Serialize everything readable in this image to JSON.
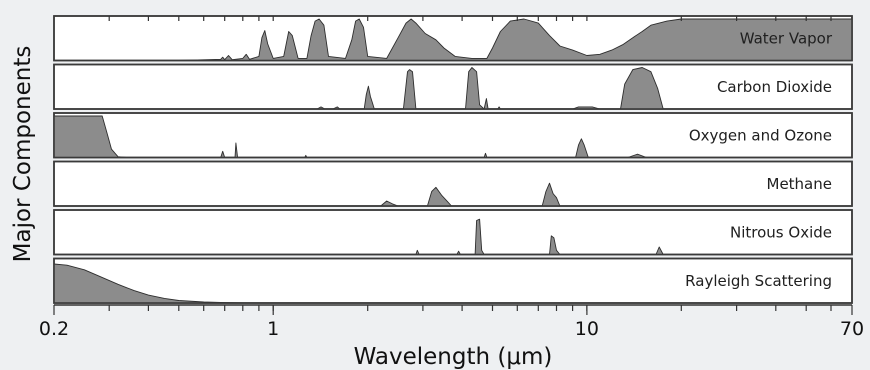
{
  "chart_data": {
    "type": "area",
    "xlabel": "Wavelength (μm)",
    "ylabel": "Major Components",
    "xscale": "log",
    "xlim": [
      0.2,
      70
    ],
    "ylim": [
      0,
      1
    ],
    "xticks": [
      {
        "value": 0.2,
        "label": "0.2"
      },
      {
        "value": 1,
        "label": "1"
      },
      {
        "value": 10,
        "label": "10"
      },
      {
        "value": 70,
        "label": "70"
      }
    ],
    "minor_ticks": [
      0.3,
      0.4,
      0.5,
      0.6,
      0.7,
      0.8,
      0.9,
      2,
      3,
      4,
      5,
      6,
      7,
      8,
      9,
      20,
      30,
      40,
      50,
      60
    ],
    "series": [
      {
        "name": "Water Vapor",
        "points": [
          [
            0.2,
            0
          ],
          [
            0.5,
            0
          ],
          [
            0.68,
            0.03
          ],
          [
            0.69,
            0.08
          ],
          [
            0.7,
            0.02
          ],
          [
            0.72,
            0.12
          ],
          [
            0.74,
            0.02
          ],
          [
            0.8,
            0.05
          ],
          [
            0.82,
            0.15
          ],
          [
            0.84,
            0.03
          ],
          [
            0.9,
            0.1
          ],
          [
            0.92,
            0.55
          ],
          [
            0.94,
            0.72
          ],
          [
            0.96,
            0.4
          ],
          [
            1.0,
            0.05
          ],
          [
            1.08,
            0.1
          ],
          [
            1.12,
            0.7
          ],
          [
            1.15,
            0.6
          ],
          [
            1.2,
            0.05
          ],
          [
            1.28,
            0.05
          ],
          [
            1.32,
            0.6
          ],
          [
            1.36,
            0.95
          ],
          [
            1.4,
            1.0
          ],
          [
            1.45,
            0.85
          ],
          [
            1.5,
            0.1
          ],
          [
            1.7,
            0.05
          ],
          [
            1.78,
            0.5
          ],
          [
            1.83,
            0.95
          ],
          [
            1.88,
            1.0
          ],
          [
            1.94,
            0.8
          ],
          [
            2.0,
            0.1
          ],
          [
            2.3,
            0.05
          ],
          [
            2.5,
            0.55
          ],
          [
            2.65,
            0.9
          ],
          [
            2.75,
            1.0
          ],
          [
            2.85,
            0.9
          ],
          [
            3.05,
            0.65
          ],
          [
            3.3,
            0.5
          ],
          [
            3.5,
            0.3
          ],
          [
            3.8,
            0.1
          ],
          [
            4.3,
            0.05
          ],
          [
            4.8,
            0.05
          ],
          [
            5.0,
            0.3
          ],
          [
            5.3,
            0.7
          ],
          [
            5.7,
            0.95
          ],
          [
            6.3,
            1.0
          ],
          [
            7.0,
            0.9
          ],
          [
            7.6,
            0.6
          ],
          [
            8.2,
            0.35
          ],
          [
            9.0,
            0.25
          ],
          [
            10,
            0.12
          ],
          [
            11,
            0.15
          ],
          [
            12,
            0.25
          ],
          [
            13,
            0.38
          ],
          [
            14,
            0.55
          ],
          [
            15,
            0.7
          ],
          [
            16,
            0.85
          ],
          [
            17,
            0.9
          ],
          [
            18,
            0.95
          ],
          [
            20,
            1.0
          ],
          [
            70,
            1.0
          ]
        ]
      },
      {
        "name": "Carbon Dioxide",
        "points": [
          [
            0.2,
            0
          ],
          [
            1.38,
            0
          ],
          [
            1.42,
            0.05
          ],
          [
            1.46,
            0
          ],
          [
            1.55,
            0
          ],
          [
            1.6,
            0.05
          ],
          [
            1.63,
            0
          ],
          [
            1.95,
            0
          ],
          [
            1.98,
            0.35
          ],
          [
            2.01,
            0.55
          ],
          [
            2.04,
            0.3
          ],
          [
            2.07,
            0.15
          ],
          [
            2.1,
            0
          ],
          [
            2.6,
            0
          ],
          [
            2.68,
            0.9
          ],
          [
            2.72,
            0.95
          ],
          [
            2.78,
            0.9
          ],
          [
            2.85,
            0
          ],
          [
            4.1,
            0
          ],
          [
            4.2,
            0.9
          ],
          [
            4.3,
            1.0
          ],
          [
            4.45,
            0.9
          ],
          [
            4.55,
            0.1
          ],
          [
            4.7,
            0
          ],
          [
            4.78,
            0.25
          ],
          [
            4.84,
            0
          ],
          [
            5.2,
            0
          ],
          [
            5.25,
            0.05
          ],
          [
            5.3,
            0
          ],
          [
            9.0,
            0
          ],
          [
            9.4,
            0.05
          ],
          [
            10.4,
            0.05
          ],
          [
            11,
            0
          ],
          [
            12.8,
            0
          ],
          [
            13.2,
            0.6
          ],
          [
            14,
            0.95
          ],
          [
            15,
            1.0
          ],
          [
            16,
            0.9
          ],
          [
            16.8,
            0.5
          ],
          [
            17.5,
            0
          ],
          [
            70,
            0
          ]
        ]
      },
      {
        "name": "Oxygen and Ozone",
        "points": [
          [
            0.2,
            1.0
          ],
          [
            0.285,
            1.0
          ],
          [
            0.295,
            0.6
          ],
          [
            0.305,
            0.2
          ],
          [
            0.32,
            0.02
          ],
          [
            0.34,
            0
          ],
          [
            0.68,
            0
          ],
          [
            0.69,
            0.15
          ],
          [
            0.7,
            0
          ],
          [
            0.755,
            0
          ],
          [
            0.76,
            0.35
          ],
          [
            0.77,
            0
          ],
          [
            1.26,
            0
          ],
          [
            1.27,
            0.05
          ],
          [
            1.28,
            0
          ],
          [
            4.7,
            0
          ],
          [
            4.75,
            0.1
          ],
          [
            4.8,
            0
          ],
          [
            9.2,
            0
          ],
          [
            9.4,
            0.3
          ],
          [
            9.6,
            0.45
          ],
          [
            9.8,
            0.3
          ],
          [
            10.1,
            0
          ],
          [
            13.5,
            0
          ],
          [
            14.5,
            0.08
          ],
          [
            15.5,
            0
          ],
          [
            70,
            0
          ]
        ]
      },
      {
        "name": "Methane",
        "points": [
          [
            0.2,
            0
          ],
          [
            2.2,
            0
          ],
          [
            2.3,
            0.12
          ],
          [
            2.4,
            0.05
          ],
          [
            2.5,
            0
          ],
          [
            3.1,
            0
          ],
          [
            3.2,
            0.35
          ],
          [
            3.3,
            0.45
          ],
          [
            3.45,
            0.25
          ],
          [
            3.6,
            0.1
          ],
          [
            3.7,
            0
          ],
          [
            7.2,
            0
          ],
          [
            7.4,
            0.35
          ],
          [
            7.6,
            0.55
          ],
          [
            7.8,
            0.3
          ],
          [
            8.0,
            0.2
          ],
          [
            8.2,
            0
          ],
          [
            70,
            0
          ]
        ]
      },
      {
        "name": "Nitrous Oxide",
        "points": [
          [
            0.2,
            0
          ],
          [
            2.85,
            0
          ],
          [
            2.88,
            0.1
          ],
          [
            2.92,
            0
          ],
          [
            3.85,
            0
          ],
          [
            3.9,
            0.08
          ],
          [
            3.95,
            0
          ],
          [
            4.4,
            0
          ],
          [
            4.45,
            0.82
          ],
          [
            4.55,
            0.85
          ],
          [
            4.62,
            0.1
          ],
          [
            4.7,
            0
          ],
          [
            7.6,
            0
          ],
          [
            7.7,
            0.45
          ],
          [
            7.85,
            0.4
          ],
          [
            8.0,
            0.1
          ],
          [
            8.2,
            0
          ],
          [
            16.6,
            0
          ],
          [
            17,
            0.18
          ],
          [
            17.5,
            0
          ],
          [
            70,
            0
          ]
        ]
      },
      {
        "name": "Rayleigh Scattering",
        "points": [
          [
            0.2,
            0.94
          ],
          [
            0.22,
            0.91
          ],
          [
            0.25,
            0.8
          ],
          [
            0.28,
            0.64
          ],
          [
            0.32,
            0.45
          ],
          [
            0.36,
            0.3
          ],
          [
            0.4,
            0.19
          ],
          [
            0.45,
            0.11
          ],
          [
            0.5,
            0.06
          ],
          [
            0.6,
            0.025
          ],
          [
            0.7,
            0.01
          ],
          [
            0.8,
            0
          ],
          [
            70,
            0
          ]
        ]
      }
    ]
  },
  "colors": {
    "band_fill": "#8c8c8c",
    "band_stroke": "#2e2e2e",
    "panel_background": "#ffffff",
    "page_background": "#eef0f2"
  }
}
